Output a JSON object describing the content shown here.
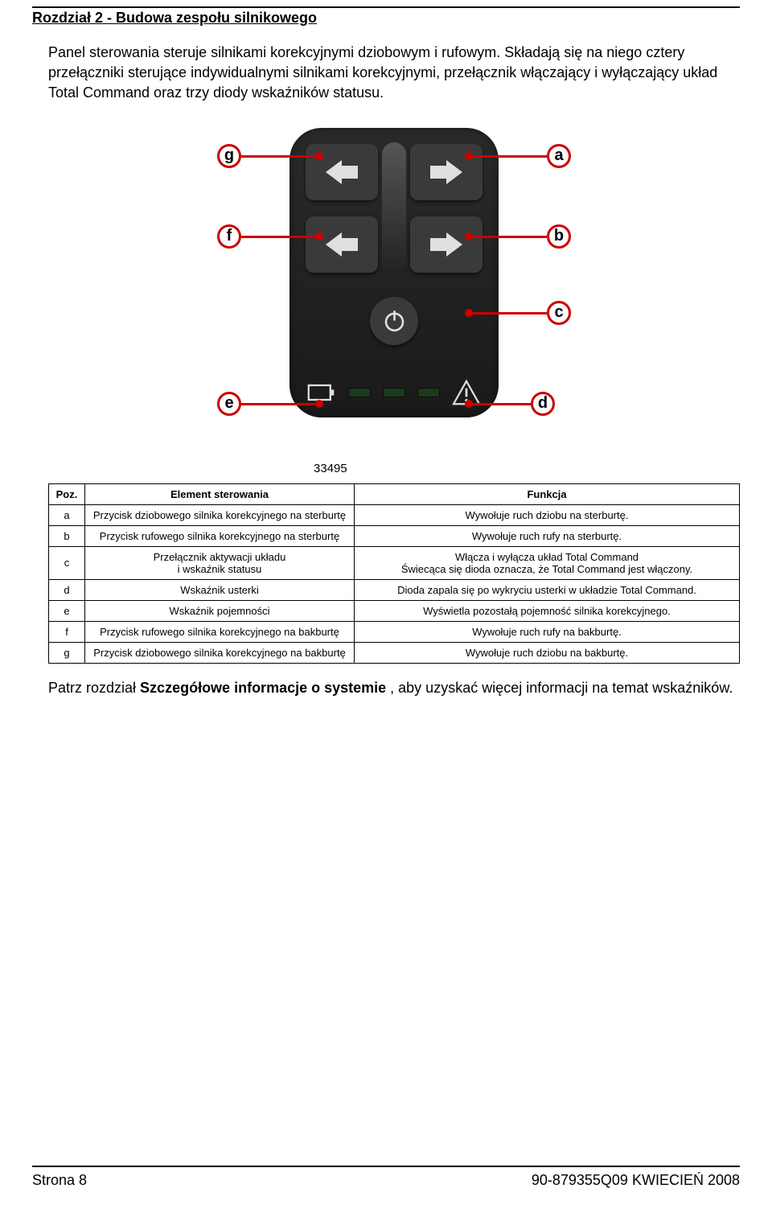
{
  "chapter_title": "Rozdział 2 - Budowa zespołu silnikowego",
  "intro_para1": "Panel sterowania steruje silnikami korekcyjnymi dziobowym i rufowym. Składają się na niego cztery przełączniki sterujące indywidualnymi silnikami korekcyjnymi, przełącznik włączający i wyłączający układ Total Command oraz trzy diody wskaźników statusu.",
  "figure_number": "33495",
  "callouts": {
    "a": "a",
    "b": "b",
    "c": "c",
    "d": "d",
    "e": "e",
    "f": "f",
    "g": "g"
  },
  "colors": {
    "accent": "#cc0000",
    "panel_bg": "#1a1a1a",
    "btn_bg": "#3a3a3a",
    "page_bg": "#ffffff",
    "text": "#000000",
    "arrow_fill": "#e0e0e0"
  },
  "table": {
    "headers": [
      "Poz.",
      "Element sterowania",
      "Funkcja"
    ],
    "rows": [
      [
        "a",
        "Przycisk dziobowego silnika korekcyjnego na sterburtę",
        "Wywołuje ruch dziobu na sterburtę."
      ],
      [
        "b",
        "Przycisk rufowego silnika korekcyjnego na sterburtę",
        "Wywołuje ruch rufy na sterburtę."
      ],
      [
        "c",
        "Przełącznik aktywacji układu\ni wskaźnik statusu",
        "Włącza i wyłącza układ Total Command\nŚwiecąca się dioda oznacza, że Total Command jest włączony."
      ],
      [
        "d",
        "Wskaźnik usterki",
        "Dioda zapala się po wykryciu usterki w układzie Total Command."
      ],
      [
        "e",
        "Wskaźnik pojemności",
        "Wyświetla pozostałą pojemność silnika korekcyjnego."
      ],
      [
        "f",
        "Przycisk rufowego silnika korekcyjnego na bakburtę",
        "Wywołuje ruch rufy na bakburtę."
      ],
      [
        "g",
        "Przycisk dziobowego silnika korekcyjnego na bakburtę",
        "Wywołuje ruch dziobu na bakburtę."
      ]
    ]
  },
  "closing_prefix": "Patrz rozdział ",
  "closing_bold": "Szczegółowe informacje o systemie",
  "closing_suffix": " , aby uzyskać więcej informacji na temat wskaźników.",
  "footer_left": "Strona   8",
  "footer_right": "90-879355Q09  KWIECIEŃ  2008"
}
